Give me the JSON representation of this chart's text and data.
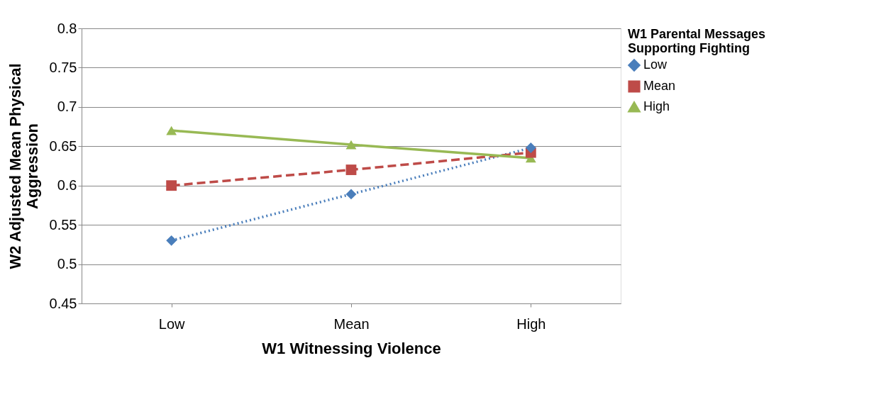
{
  "chart_data": {
    "type": "line",
    "xlabel": "W1 Witnessing Violence",
    "ylabel": "W2 Adjusted Mean Physical\nAggression",
    "legend_title": "W1 Parental Messages\nSupporting Fighting",
    "categories": [
      "Low",
      "Mean",
      "High"
    ],
    "series": [
      {
        "name": "Low",
        "color": "#4a7ebb",
        "values": [
          0.53,
          0.589,
          0.648
        ],
        "marker": "diamond",
        "line_style": "dotted"
      },
      {
        "name": "Mean",
        "color": "#be4b48",
        "values": [
          0.6,
          0.62,
          0.642
        ],
        "marker": "square",
        "line_style": "dashed"
      },
      {
        "name": "High",
        "color": "#98b954",
        "values": [
          0.67,
          0.652,
          0.635
        ],
        "marker": "triangle",
        "line_style": "solid"
      }
    ],
    "ylim": [
      0.45,
      0.8
    ],
    "yticks": [
      0.45,
      0.5,
      0.55,
      0.6,
      0.65,
      0.7,
      0.75,
      0.8
    ],
    "grid": "y",
    "legend": "right"
  }
}
